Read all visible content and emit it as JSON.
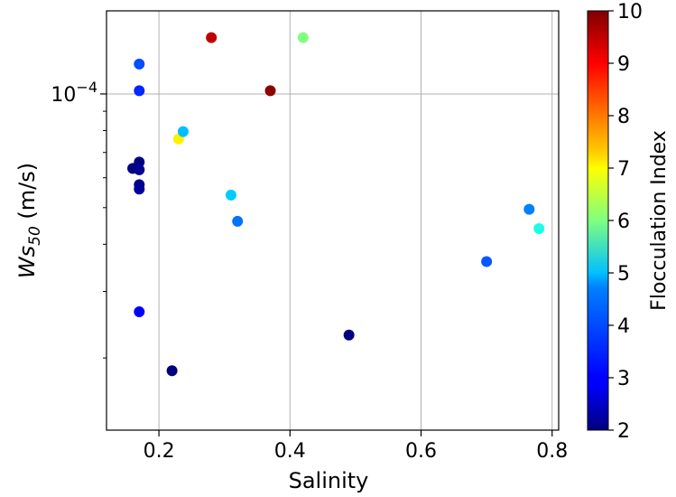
{
  "chart_data": {
    "type": "scatter",
    "title": "",
    "xlabel": "Salinity",
    "ylabel_main": "Ws",
    "ylabel_sub": "50",
    "ylabel_unit": " (m/s)",
    "xlim": [
      0.12,
      0.81
    ],
    "ylim_log10": [
      -4.89,
      -3.78
    ],
    "yscale": "log",
    "x_ticks": [
      0.2,
      0.4,
      0.6,
      0.8
    ],
    "x_tick_labels": [
      "0.2",
      "0.4",
      "0.6",
      "0.8"
    ],
    "y_major_tick": -4,
    "y_major_tick_label_base": "10",
    "y_major_tick_label_exp": "−4",
    "grid": true,
    "colorbar": {
      "label": "Flocculation Index",
      "min": 2,
      "max": 10,
      "ticks": [
        2,
        3,
        4,
        5,
        6,
        7,
        8,
        9,
        10
      ],
      "tick_labels": [
        "2",
        "3",
        "4",
        "5",
        "6",
        "7",
        "8",
        "9",
        "10"
      ],
      "colormap": "jet"
    },
    "points": [
      {
        "x": 0.16,
        "y": 6.35e-05,
        "c": 2.0
      },
      {
        "x": 0.17,
        "y": 6.6e-05,
        "c": 2.0
      },
      {
        "x": 0.17,
        "y": 6.3e-05,
        "c": 2.1
      },
      {
        "x": 0.17,
        "y": 5.75e-05,
        "c": 2.1
      },
      {
        "x": 0.17,
        "y": 5.6e-05,
        "c": 2.2
      },
      {
        "x": 0.17,
        "y": 0.00012,
        "c": 3.6
      },
      {
        "x": 0.17,
        "y": 0.000102,
        "c": 3.3
      },
      {
        "x": 0.17,
        "y": 2.65e-05,
        "c": 3.0
      },
      {
        "x": 0.22,
        "y": 1.85e-05,
        "c": 2.0
      },
      {
        "x": 0.23,
        "y": 7.6e-05,
        "c": 7.1
      },
      {
        "x": 0.237,
        "y": 7.95e-05,
        "c": 4.5
      },
      {
        "x": 0.28,
        "y": 0.000141,
        "c": 9.5
      },
      {
        "x": 0.31,
        "y": 5.4e-05,
        "c": 4.6
      },
      {
        "x": 0.32,
        "y": 4.6e-05,
        "c": 3.9
      },
      {
        "x": 0.37,
        "y": 0.000102,
        "c": 9.9
      },
      {
        "x": 0.42,
        "y": 0.000141,
        "c": 6.0
      },
      {
        "x": 0.49,
        "y": 2.3e-05,
        "c": 2.0
      },
      {
        "x": 0.7,
        "y": 3.6e-05,
        "c": 3.7
      },
      {
        "x": 0.765,
        "y": 4.95e-05,
        "c": 4.0
      },
      {
        "x": 0.78,
        "y": 4.4e-05,
        "c": 5.2
      }
    ]
  }
}
